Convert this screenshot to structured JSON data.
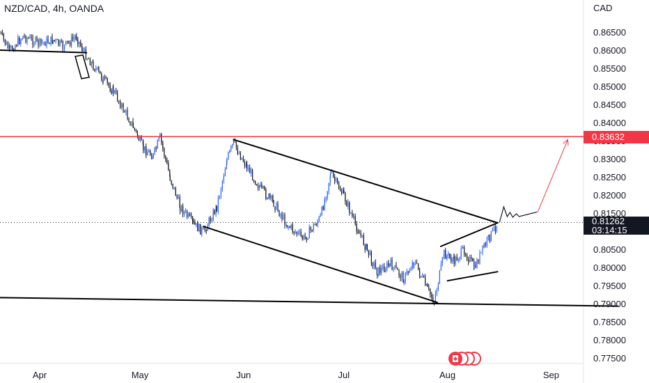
{
  "header": {
    "title": "NZD/CAD, 4h, OANDA"
  },
  "axis": {
    "currency": "CAD"
  },
  "price_tags": {
    "resistance": "0.83632",
    "current_price": "0.81262",
    "countdown": "03:14:15"
  },
  "colors": {
    "candle_up": "#2962ff",
    "candle_down": "#131722",
    "resistance_line": "#f23645",
    "arrow": "#f23645",
    "trendline": "#000000"
  },
  "chart_data": {
    "type": "line",
    "title": "NZD/CAD, 4h, OANDA",
    "instrument": "NZD/CAD",
    "timeframe": "4h",
    "source": "OANDA",
    "x_ticks": [
      "Apr",
      "May",
      "Jun",
      "Jul",
      "Aug",
      "Sep"
    ],
    "y_ticks": [
      "0.86500",
      "0.86000",
      "0.85500",
      "0.85000",
      "0.84500",
      "0.84000",
      "0.83500",
      "0.83000",
      "0.82500",
      "0.82000",
      "0.81500",
      "0.81000",
      "0.80500",
      "0.80000",
      "0.79500",
      "0.79000",
      "0.78500",
      "0.78000",
      "0.77500"
    ],
    "ylim": [
      0.772,
      0.87
    ],
    "grid": false,
    "price_path": [
      [
        "2024-03-20",
        0.865
      ],
      [
        "2024-03-23",
        0.86
      ],
      [
        "2024-03-27",
        0.864
      ],
      [
        "2024-04-01",
        0.862
      ],
      [
        "2024-04-05",
        0.863
      ],
      [
        "2024-04-08",
        0.861
      ],
      [
        "2024-04-12",
        0.864
      ],
      [
        "2024-04-14",
        0.86
      ],
      [
        "2024-04-17",
        0.856
      ],
      [
        "2024-04-20",
        0.852
      ],
      [
        "2024-04-23",
        0.849
      ],
      [
        "2024-04-26",
        0.844
      ],
      [
        "2024-04-29",
        0.839
      ],
      [
        "2024-05-02",
        0.833
      ],
      [
        "2024-05-05",
        0.831
      ],
      [
        "2024-05-07",
        0.836
      ],
      [
        "2024-05-10",
        0.825
      ],
      [
        "2024-05-13",
        0.817
      ],
      [
        "2024-05-17",
        0.812
      ],
      [
        "2024-05-20",
        0.81
      ],
      [
        "2024-05-24",
        0.817
      ],
      [
        "2024-05-27",
        0.83
      ],
      [
        "2024-05-29",
        0.8345
      ],
      [
        "2024-06-02",
        0.828
      ],
      [
        "2024-06-06",
        0.822
      ],
      [
        "2024-06-10",
        0.818
      ],
      [
        "2024-06-14",
        0.812
      ],
      [
        "2024-06-19",
        0.808
      ],
      [
        "2024-06-24",
        0.814
      ],
      [
        "2024-06-27",
        0.826
      ],
      [
        "2024-07-01",
        0.82
      ],
      [
        "2024-07-04",
        0.813
      ],
      [
        "2024-07-08",
        0.805
      ],
      [
        "2024-07-11",
        0.799
      ],
      [
        "2024-07-15",
        0.801
      ],
      [
        "2024-07-19",
        0.797
      ],
      [
        "2024-07-22",
        0.802
      ],
      [
        "2024-07-26",
        0.794
      ],
      [
        "2024-07-28",
        0.791
      ],
      [
        "2024-07-31",
        0.804
      ],
      [
        "2024-08-03",
        0.802
      ],
      [
        "2024-08-06",
        0.805
      ],
      [
        "2024-08-09",
        0.8
      ],
      [
        "2024-08-12",
        0.806
      ],
      [
        "2024-08-16",
        0.8126
      ]
    ],
    "levels": {
      "resistance": 0.83632,
      "current": 0.81262
    },
    "drawings": [
      {
        "name": "upper-channel-line",
        "from": [
          "2024-05-29",
          0.8355
        ],
        "to": [
          "2024-08-16",
          0.8125
        ]
      },
      {
        "name": "lower-channel-line",
        "from": [
          "2024-05-20",
          0.8115
        ],
        "to": [
          "2024-07-29",
          0.7905
        ]
      },
      {
        "name": "support-line",
        "from": [
          "2024-03-09",
          0.792
        ],
        "to": [
          "2024-09-21",
          0.7895
        ]
      },
      {
        "name": "top-left-line",
        "from": [
          "2024-03-09",
          0.8605
        ],
        "to": [
          "2024-04-15",
          0.8595
        ]
      },
      {
        "name": "wedge-upper",
        "from": [
          "2024-07-30",
          0.806
        ],
        "to": [
          "2024-08-16",
          0.8125
        ]
      },
      {
        "name": "wedge-lower",
        "from": [
          "2024-08-01",
          0.7965
        ],
        "to": [
          "2024-08-16",
          0.799
        ]
      }
    ],
    "annotations": [
      {
        "type": "arrow",
        "from": [
          "2024-08-28",
          0.8155
        ],
        "to": [
          "2024-09-06",
          0.8355
        ]
      },
      {
        "type": "scribble",
        "from": [
          "2024-08-17",
          0.815
        ],
        "to": [
          "2024-08-27",
          0.8155
        ]
      }
    ]
  }
}
